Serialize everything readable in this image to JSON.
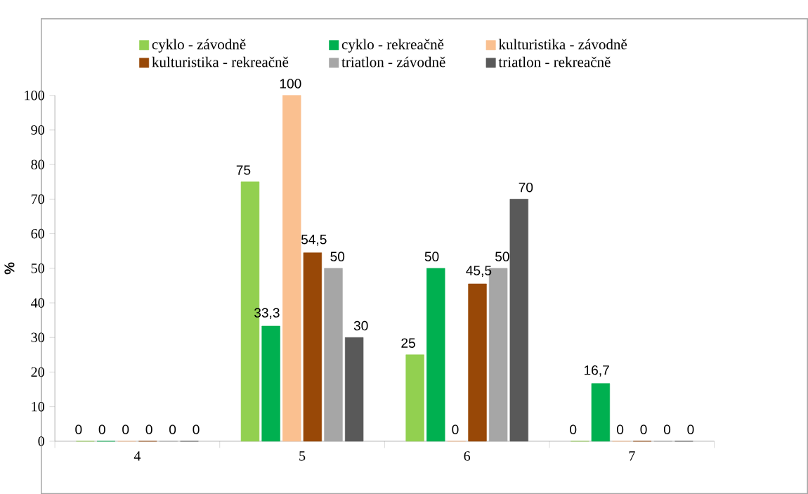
{
  "chart_data": {
    "type": "bar",
    "ylabel": "%",
    "categories": [
      "4",
      "5",
      "6",
      "7"
    ],
    "series": [
      {
        "name": "cyklo - závodně",
        "color": "#92d050",
        "values": [
          0,
          75,
          25,
          0
        ],
        "value_labels": [
          "0",
          "75",
          "25",
          "0"
        ]
      },
      {
        "name": "cyklo - rekreačně",
        "color": "#00b050",
        "values": [
          0,
          33.3,
          50,
          16.7
        ],
        "value_labels": [
          "0",
          "33,3",
          "50",
          "16,7"
        ]
      },
      {
        "name": "kulturistika - závodně",
        "color": "#fac090",
        "values": [
          0,
          100,
          0,
          0
        ],
        "value_labels": [
          "0",
          "100",
          "0",
          "0"
        ]
      },
      {
        "name": "kulturistika - rekreačně",
        "color": "#984807",
        "values": [
          0,
          54.5,
          45.5,
          0
        ],
        "value_labels": [
          "0",
          "54,5",
          "45,5",
          "0"
        ]
      },
      {
        "name": "triatlon - závodně",
        "color": "#a6a6a6",
        "values": [
          0,
          50,
          50,
          0
        ],
        "value_labels": [
          "0",
          "50",
          "50",
          "0"
        ]
      },
      {
        "name": "triatlon - rekreačně",
        "color": "#595959",
        "values": [
          0,
          30,
          70,
          0
        ],
        "value_labels": [
          "0",
          "30",
          "70",
          "0"
        ]
      }
    ],
    "ylim": [
      0,
      100
    ],
    "yticks": [
      0,
      10,
      20,
      30,
      40,
      50,
      60,
      70,
      80,
      90,
      100
    ],
    "legend": "top",
    "grid": false
  }
}
